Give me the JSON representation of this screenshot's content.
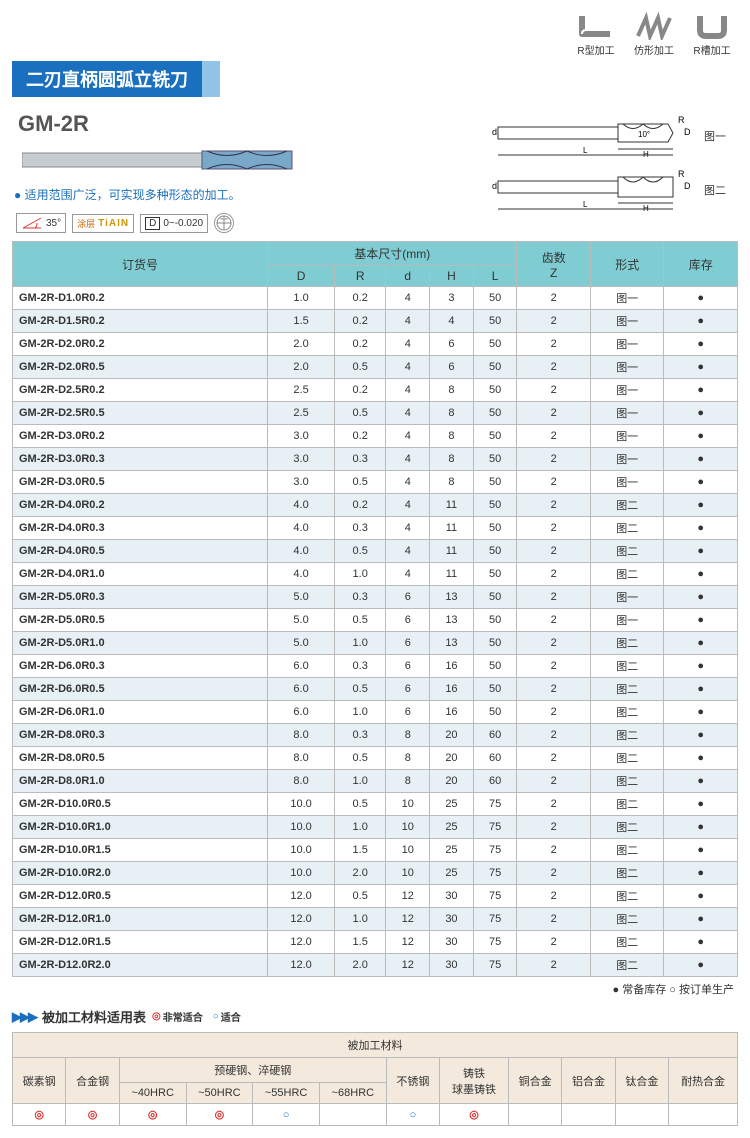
{
  "top_icons": [
    {
      "name": "r-type-icon",
      "label": "R型加工"
    },
    {
      "name": "profile-icon",
      "label": "仿形加工"
    },
    {
      "name": "r-slot-icon",
      "label": "R槽加工"
    }
  ],
  "title": "二刃直柄圆弧立铣刀",
  "model": "GM-2R",
  "description": "适用范围广泛，可实现多种形态的加工。",
  "diagram_labels": {
    "fig1": "图一",
    "fig2": "图二",
    "angle": "10°",
    "R": "R",
    "D": "D",
    "d": "d",
    "H": "H",
    "L": "L"
  },
  "badges": {
    "angle": "35°",
    "coating_prefix": "涂层",
    "coating": "TiAIN",
    "tolerance_label": "D",
    "tolerance": "0~-0.020"
  },
  "spec_table": {
    "headers": {
      "order": "订货号",
      "dims": "基本尺寸(mm)",
      "D": "D",
      "R": "R",
      "d": "d",
      "H": "H",
      "L": "L",
      "teeth": "齿数\nZ",
      "form": "形式",
      "stock": "库存"
    },
    "rows": [
      {
        "code": "GM-2R-D1.0R0.2",
        "D": "1.0",
        "R": "0.2",
        "d": "4",
        "H": "3",
        "L": "50",
        "Z": "2",
        "form": "图一",
        "stock": "●"
      },
      {
        "code": "GM-2R-D1.5R0.2",
        "D": "1.5",
        "R": "0.2",
        "d": "4",
        "H": "4",
        "L": "50",
        "Z": "2",
        "form": "图一",
        "stock": "●"
      },
      {
        "code": "GM-2R-D2.0R0.2",
        "D": "2.0",
        "R": "0.2",
        "d": "4",
        "H": "6",
        "L": "50",
        "Z": "2",
        "form": "图一",
        "stock": "●"
      },
      {
        "code": "GM-2R-D2.0R0.5",
        "D": "2.0",
        "R": "0.5",
        "d": "4",
        "H": "6",
        "L": "50",
        "Z": "2",
        "form": "图一",
        "stock": "●"
      },
      {
        "code": "GM-2R-D2.5R0.2",
        "D": "2.5",
        "R": "0.2",
        "d": "4",
        "H": "8",
        "L": "50",
        "Z": "2",
        "form": "图一",
        "stock": "●"
      },
      {
        "code": "GM-2R-D2.5R0.5",
        "D": "2.5",
        "R": "0.5",
        "d": "4",
        "H": "8",
        "L": "50",
        "Z": "2",
        "form": "图一",
        "stock": "●"
      },
      {
        "code": "GM-2R-D3.0R0.2",
        "D": "3.0",
        "R": "0.2",
        "d": "4",
        "H": "8",
        "L": "50",
        "Z": "2",
        "form": "图一",
        "stock": "●"
      },
      {
        "code": "GM-2R-D3.0R0.3",
        "D": "3.0",
        "R": "0.3",
        "d": "4",
        "H": "8",
        "L": "50",
        "Z": "2",
        "form": "图一",
        "stock": "●"
      },
      {
        "code": "GM-2R-D3.0R0.5",
        "D": "3.0",
        "R": "0.5",
        "d": "4",
        "H": "8",
        "L": "50",
        "Z": "2",
        "form": "图一",
        "stock": "●"
      },
      {
        "code": "GM-2R-D4.0R0.2",
        "D": "4.0",
        "R": "0.2",
        "d": "4",
        "H": "11",
        "L": "50",
        "Z": "2",
        "form": "图二",
        "stock": "●"
      },
      {
        "code": "GM-2R-D4.0R0.3",
        "D": "4.0",
        "R": "0.3",
        "d": "4",
        "H": "11",
        "L": "50",
        "Z": "2",
        "form": "图二",
        "stock": "●"
      },
      {
        "code": "GM-2R-D4.0R0.5",
        "D": "4.0",
        "R": "0.5",
        "d": "4",
        "H": "11",
        "L": "50",
        "Z": "2",
        "form": "图二",
        "stock": "●"
      },
      {
        "code": "GM-2R-D4.0R1.0",
        "D": "4.0",
        "R": "1.0",
        "d": "4",
        "H": "11",
        "L": "50",
        "Z": "2",
        "form": "图二",
        "stock": "●"
      },
      {
        "code": "GM-2R-D5.0R0.3",
        "D": "5.0",
        "R": "0.3",
        "d": "6",
        "H": "13",
        "L": "50",
        "Z": "2",
        "form": "图一",
        "stock": "●"
      },
      {
        "code": "GM-2R-D5.0R0.5",
        "D": "5.0",
        "R": "0.5",
        "d": "6",
        "H": "13",
        "L": "50",
        "Z": "2",
        "form": "图一",
        "stock": "●"
      },
      {
        "code": "GM-2R-D5.0R1.0",
        "D": "5.0",
        "R": "1.0",
        "d": "6",
        "H": "13",
        "L": "50",
        "Z": "2",
        "form": "图二",
        "stock": "●"
      },
      {
        "code": "GM-2R-D6.0R0.3",
        "D": "6.0",
        "R": "0.3",
        "d": "6",
        "H": "16",
        "L": "50",
        "Z": "2",
        "form": "图二",
        "stock": "●"
      },
      {
        "code": "GM-2R-D6.0R0.5",
        "D": "6.0",
        "R": "0.5",
        "d": "6",
        "H": "16",
        "L": "50",
        "Z": "2",
        "form": "图二",
        "stock": "●"
      },
      {
        "code": "GM-2R-D6.0R1.0",
        "D": "6.0",
        "R": "1.0",
        "d": "6",
        "H": "16",
        "L": "50",
        "Z": "2",
        "form": "图二",
        "stock": "●"
      },
      {
        "code": "GM-2R-D8.0R0.3",
        "D": "8.0",
        "R": "0.3",
        "d": "8",
        "H": "20",
        "L": "60",
        "Z": "2",
        "form": "图二",
        "stock": "●"
      },
      {
        "code": "GM-2R-D8.0R0.5",
        "D": "8.0",
        "R": "0.5",
        "d": "8",
        "H": "20",
        "L": "60",
        "Z": "2",
        "form": "图二",
        "stock": "●"
      },
      {
        "code": "GM-2R-D8.0R1.0",
        "D": "8.0",
        "R": "1.0",
        "d": "8",
        "H": "20",
        "L": "60",
        "Z": "2",
        "form": "图二",
        "stock": "●"
      },
      {
        "code": "GM-2R-D10.0R0.5",
        "D": "10.0",
        "R": "0.5",
        "d": "10",
        "H": "25",
        "L": "75",
        "Z": "2",
        "form": "图二",
        "stock": "●"
      },
      {
        "code": "GM-2R-D10.0R1.0",
        "D": "10.0",
        "R": "1.0",
        "d": "10",
        "H": "25",
        "L": "75",
        "Z": "2",
        "form": "图二",
        "stock": "●"
      },
      {
        "code": "GM-2R-D10.0R1.5",
        "D": "10.0",
        "R": "1.5",
        "d": "10",
        "H": "25",
        "L": "75",
        "Z": "2",
        "form": "图二",
        "stock": "●"
      },
      {
        "code": "GM-2R-D10.0R2.0",
        "D": "10.0",
        "R": "2.0",
        "d": "10",
        "H": "25",
        "L": "75",
        "Z": "2",
        "form": "图二",
        "stock": "●"
      },
      {
        "code": "GM-2R-D12.0R0.5",
        "D": "12.0",
        "R": "0.5",
        "d": "12",
        "H": "30",
        "L": "75",
        "Z": "2",
        "form": "图二",
        "stock": "●"
      },
      {
        "code": "GM-2R-D12.0R1.0",
        "D": "12.0",
        "R": "1.0",
        "d": "12",
        "H": "30",
        "L": "75",
        "Z": "2",
        "form": "图二",
        "stock": "●"
      },
      {
        "code": "GM-2R-D12.0R1.5",
        "D": "12.0",
        "R": "1.5",
        "d": "12",
        "H": "30",
        "L": "75",
        "Z": "2",
        "form": "图二",
        "stock": "●"
      },
      {
        "code": "GM-2R-D12.0R2.0",
        "D": "12.0",
        "R": "2.0",
        "d": "12",
        "H": "30",
        "L": "75",
        "Z": "2",
        "form": "图二",
        "stock": "●"
      }
    ]
  },
  "foot_note": "● 常备库存  ○ 按订单生产",
  "mat_section": {
    "title": "被加工材料适用表",
    "legend_very": "非常适合",
    "legend_ok": "适合",
    "top_header": "被加工材料",
    "cols": [
      "碳素钢",
      "合金钢",
      "预硬钢、淬硬钢",
      "不锈钢",
      "铸铁\n球墨铸铁",
      "铜合金",
      "铝合金",
      "钛合金",
      "耐热合金"
    ],
    "hrc": [
      "~40HRC",
      "~50HRC",
      "~55HRC",
      "~68HRC"
    ],
    "values": [
      "◎",
      "◎",
      "◎",
      "◎",
      "○",
      "",
      "○",
      "◎",
      "",
      "",
      "",
      ""
    ]
  }
}
